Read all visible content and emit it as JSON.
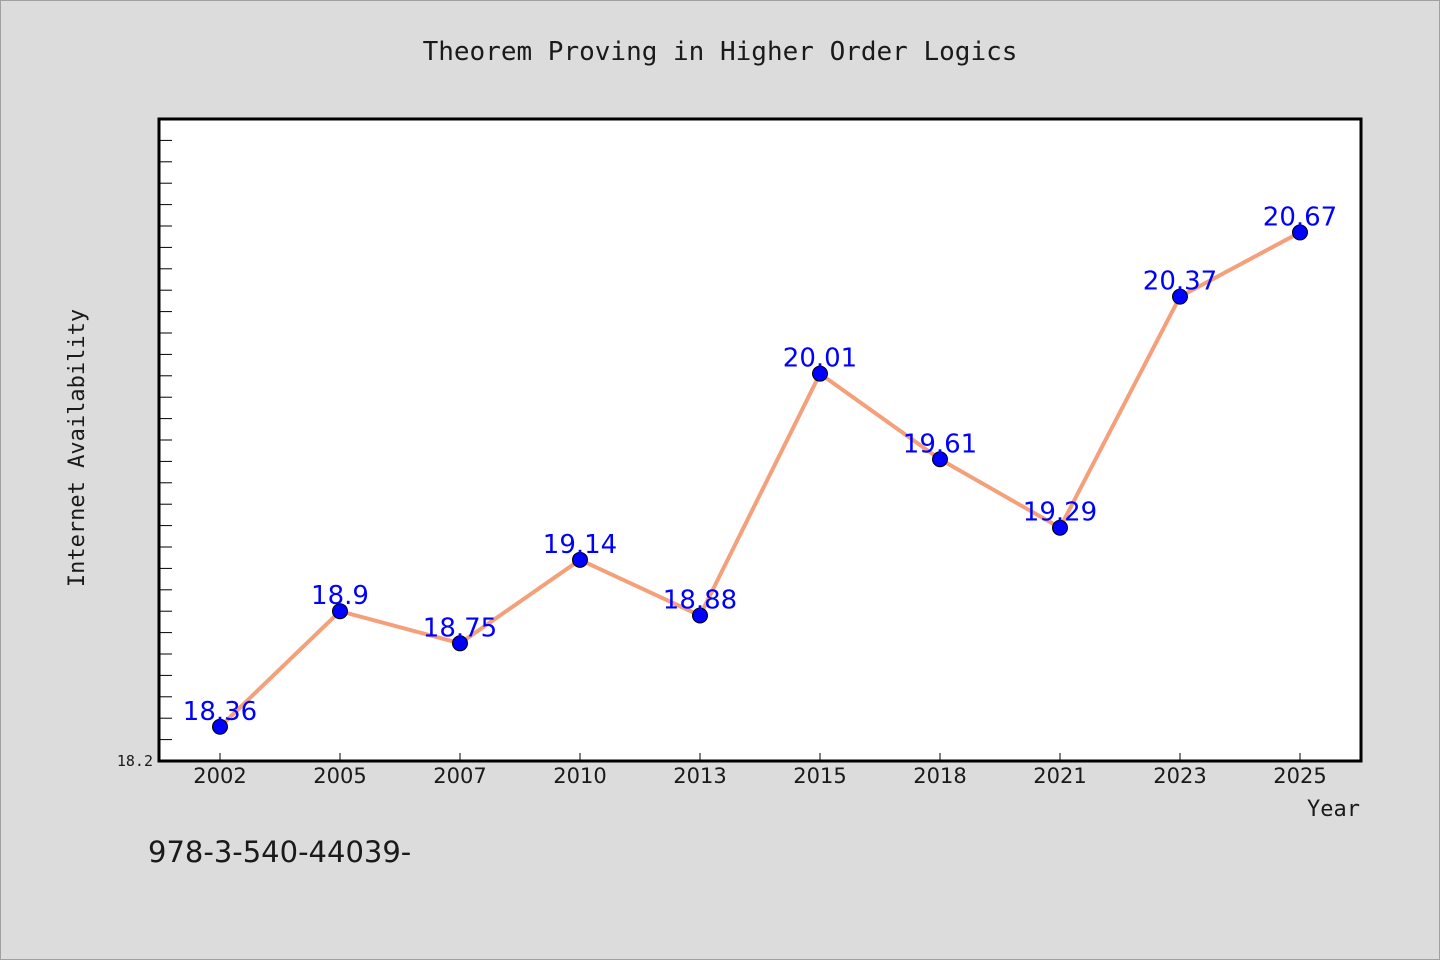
{
  "chart_data": {
    "type": "line",
    "title": "Theorem Proving in Higher Order Logics",
    "xlabel": "Year",
    "ylabel": "Internet Availability",
    "categories": [
      "2002",
      "2005",
      "2007",
      "2010",
      "2013",
      "2015",
      "2018",
      "2021",
      "2023",
      "2025"
    ],
    "series": [
      {
        "values": [
          18.36,
          18.9,
          18.75,
          19.14,
          18.88,
          20.01,
          19.61,
          19.29,
          20.37,
          20.67
        ]
      }
    ],
    "value_labels": [
      "18.36",
      "18.9",
      "18.75",
      "19.14",
      "18.88",
      "20.01",
      "19.61",
      "19.29",
      "20.37",
      "20.67"
    ],
    "ylim": [
      18.2,
      21.2
    ],
    "y_tick_label": "18.2",
    "grid": false,
    "line_color": "#f4a07a",
    "marker_color": "#0000ff",
    "label_color": "#0000ff",
    "plot_background": "#ffffff",
    "page_background": "#dcdcdc"
  },
  "footer": {
    "text": "978-3-540-44039-"
  }
}
